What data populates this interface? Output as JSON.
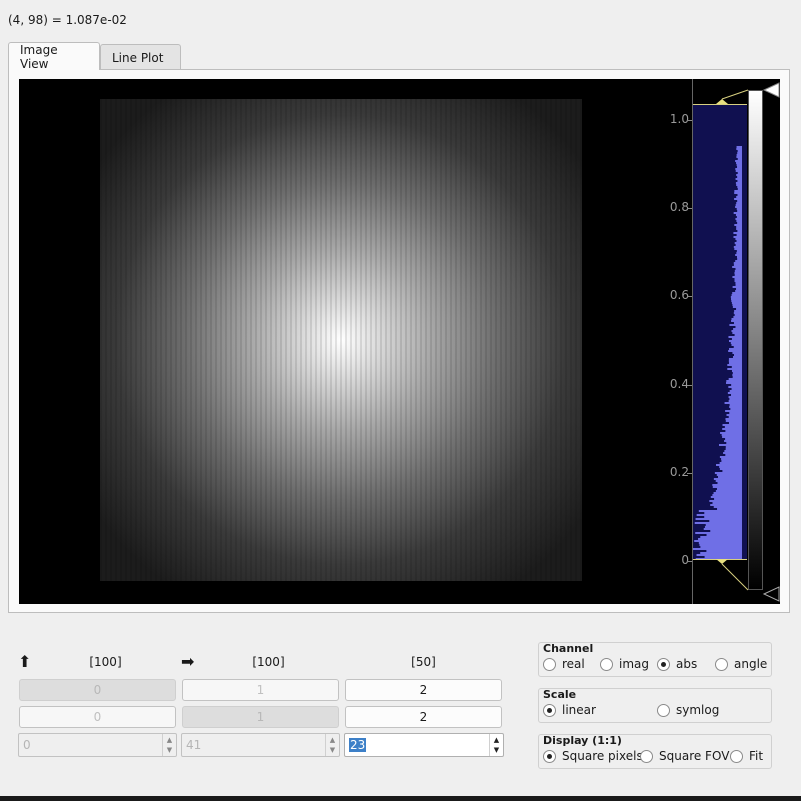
{
  "status": {
    "coordinate_readout": "(4, 98) = 1.087e-02"
  },
  "tabs": [
    {
      "label": "Image View",
      "active": true
    },
    {
      "label": "Line Plot",
      "active": false
    }
  ],
  "histogram": {
    "ticks": [
      {
        "label": "1.0",
        "value": 1.0
      },
      {
        "label": "0.8",
        "value": 0.8
      },
      {
        "label": "0.6",
        "value": 0.6
      },
      {
        "label": "0.4",
        "value": 0.4
      },
      {
        "label": "0.2",
        "value": 0.2
      },
      {
        "label": "0",
        "value": 0.0
      }
    ],
    "level_min": 0.0,
    "level_max": 1.03,
    "bar_color": "#6f6fe6",
    "background_color": "#101050"
  },
  "dims": {
    "up_arrow": "⬆",
    "right_arrow": "➡",
    "columns": [
      {
        "size": "[100]",
        "row1": "0",
        "row2": "0",
        "spin": "0"
      },
      {
        "size": "[100]",
        "row1": "1",
        "row2": "1",
        "spin": "41"
      },
      {
        "size": "[50]",
        "row1": "2",
        "row2": "2",
        "spin": "23"
      }
    ]
  },
  "channel": {
    "title": "Channel",
    "options": [
      "real",
      "imag",
      "abs",
      "angle"
    ],
    "selected": "abs"
  },
  "scale": {
    "title": "Scale",
    "options": [
      "linear",
      "symlog"
    ],
    "selected": "linear"
  },
  "display": {
    "title": "Display (1:1)",
    "options": [
      "Square pixels",
      "Square FOV",
      "Fit"
    ],
    "selected": "Square pixels"
  }
}
